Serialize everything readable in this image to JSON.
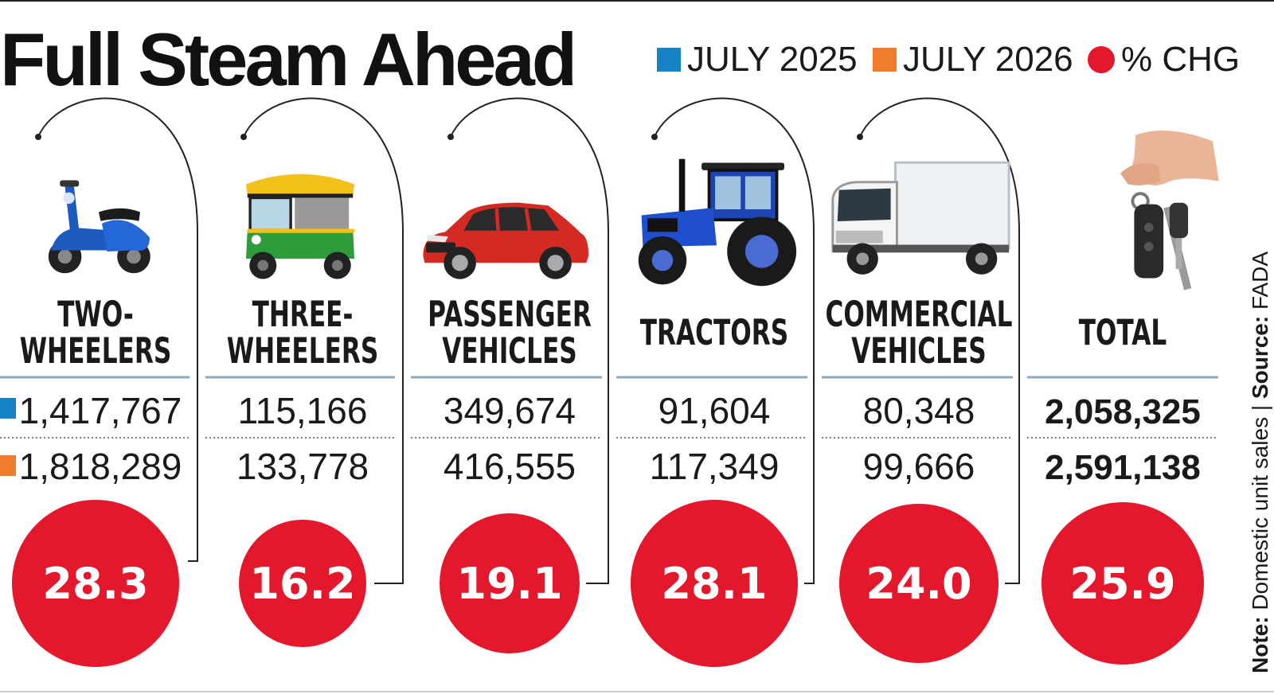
{
  "title": "Full Steam Ahead",
  "legend": [
    {
      "label": "JULY 2025",
      "color": "#1583c5",
      "shape": "square"
    },
    {
      "label": "JULY 2026",
      "color": "#f07d2b",
      "shape": "square"
    },
    {
      "label": "% CHG",
      "color": "#e3182d",
      "shape": "circle"
    }
  ],
  "note": {
    "note_label": "Note:",
    "note_text": " Domestic unit sales | ",
    "source_label": "Source:",
    "source_text": " FADA"
  },
  "colors": {
    "circle": "#e3182d",
    "separator": "#8fa9b9",
    "text": "#1a1a1a"
  },
  "chart_data": {
    "type": "table",
    "series": [
      {
        "name": "JULY 2025",
        "values": [
          1417767,
          115166,
          349674,
          91604,
          80348,
          2058325
        ]
      },
      {
        "name": "JULY 2026",
        "values": [
          1818289,
          133778,
          416555,
          117349,
          99666,
          2591138
        ]
      },
      {
        "name": "% CHG",
        "values": [
          28.3,
          16.2,
          19.1,
          28.1,
          24.0,
          25.9
        ]
      }
    ],
    "categories": [
      {
        "lines": [
          "TWO-",
          "WHEELERS"
        ],
        "icon": "scooter-icon",
        "v2025": "1,417,767",
        "v2026": "1,818,289",
        "chg": "28.3"
      },
      {
        "lines": [
          "THREE-",
          "WHEELERS"
        ],
        "icon": "auto-rickshaw-icon",
        "v2025": "115,166",
        "v2026": "133,778",
        "chg": "16.2"
      },
      {
        "lines": [
          "PASSENGER",
          "VEHICLES"
        ],
        "icon": "car-icon",
        "v2025": "349,674",
        "v2026": "416,555",
        "chg": "19.1"
      },
      {
        "lines": [
          "TRACTORS"
        ],
        "icon": "tractor-icon",
        "v2025": "91,604",
        "v2026": "117,349",
        "chg": "28.1"
      },
      {
        "lines": [
          "COMMERCIAL",
          "VEHICLES"
        ],
        "icon": "truck-icon",
        "v2025": "80,348",
        "v2026": "99,666",
        "chg": "24.0"
      },
      {
        "lines": [
          "TOTAL"
        ],
        "icon": "car-keys-icon",
        "v2025": "2,058,325",
        "v2026": "2,591,138",
        "chg": "25.9",
        "bold": true
      }
    ]
  }
}
